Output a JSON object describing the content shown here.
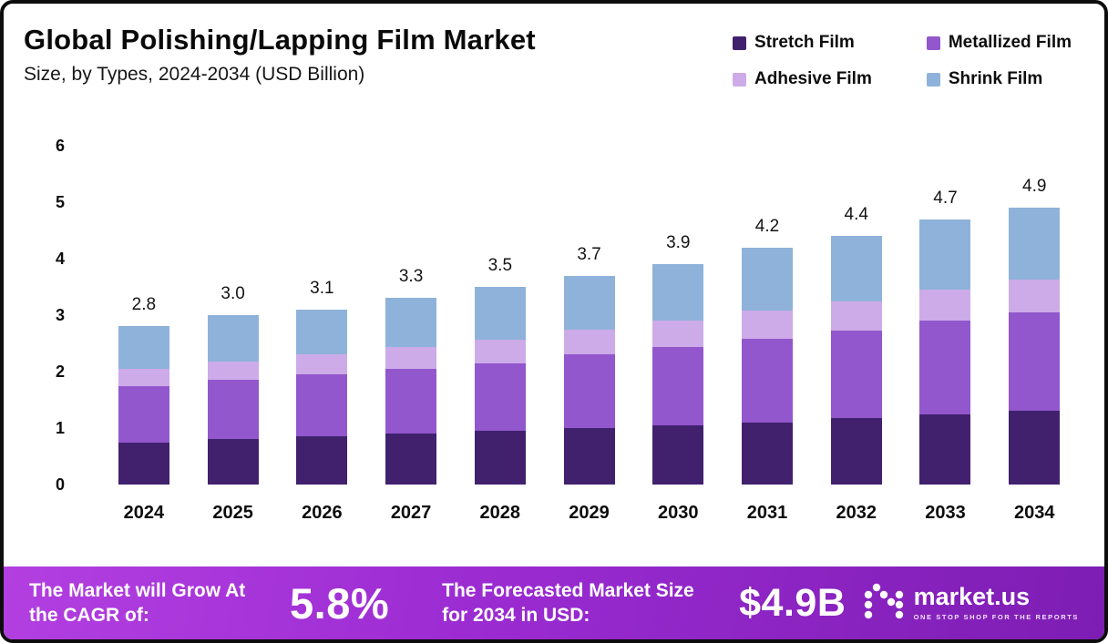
{
  "header": {
    "title": "Global Polishing/Lapping Film Market",
    "subtitle": "Size, by Types, 2024-2034 (USD Billion)"
  },
  "legend": [
    {
      "label": "Stretch Film",
      "color": "#41216e"
    },
    {
      "label": "Metallized Film",
      "color": "#9257cc"
    },
    {
      "label": "Adhesive Film",
      "color": "#ccabe8"
    },
    {
      "label": "Shrink Film",
      "color": "#8fb2da"
    }
  ],
  "chart_data": {
    "type": "bar",
    "stacked": true,
    "title": "Global Polishing/Lapping Film Market Size, by Types, 2024-2034 (USD Billion)",
    "xlabel": "",
    "ylabel": "USD Billion",
    "ylim": [
      0,
      6
    ],
    "yticks": [
      0,
      1,
      2,
      3,
      4,
      5,
      6
    ],
    "grid": false,
    "legend_position": "top-right",
    "categories": [
      "2024",
      "2025",
      "2026",
      "2027",
      "2028",
      "2029",
      "2030",
      "2031",
      "2032",
      "2033",
      "2034"
    ],
    "series": [
      {
        "name": "Stretch Film",
        "color": "#41216e",
        "values": [
          0.75,
          0.8,
          0.85,
          0.9,
          0.95,
          1.0,
          1.05,
          1.1,
          1.18,
          1.25,
          1.3
        ]
      },
      {
        "name": "Metallized Film",
        "color": "#9257cc",
        "values": [
          1.0,
          1.05,
          1.1,
          1.15,
          1.2,
          1.3,
          1.38,
          1.48,
          1.55,
          1.65,
          1.75
        ]
      },
      {
        "name": "Adhesive Film",
        "color": "#ccabe8",
        "values": [
          0.3,
          0.33,
          0.35,
          0.38,
          0.42,
          0.45,
          0.48,
          0.5,
          0.52,
          0.55,
          0.58
        ]
      },
      {
        "name": "Shrink Film",
        "color": "#8fb2da",
        "values": [
          0.75,
          0.82,
          0.8,
          0.87,
          0.93,
          0.95,
          0.99,
          1.12,
          1.15,
          1.25,
          1.27
        ]
      }
    ],
    "totals": [
      "2.8",
      "3.0",
      "3.1",
      "3.3",
      "3.5",
      "3.7",
      "3.9",
      "4.2",
      "4.4",
      "4.7",
      "4.9"
    ]
  },
  "footer": {
    "cagr_label": "The Market will Grow At the CAGR of:",
    "cagr_value": "5.8%",
    "forecast_label": "The Forecasted Market Size for 2034 in USD:",
    "forecast_value": "$4.9B",
    "brand": "market.us",
    "brand_tagline": "One Stop Shop For The Reports"
  }
}
